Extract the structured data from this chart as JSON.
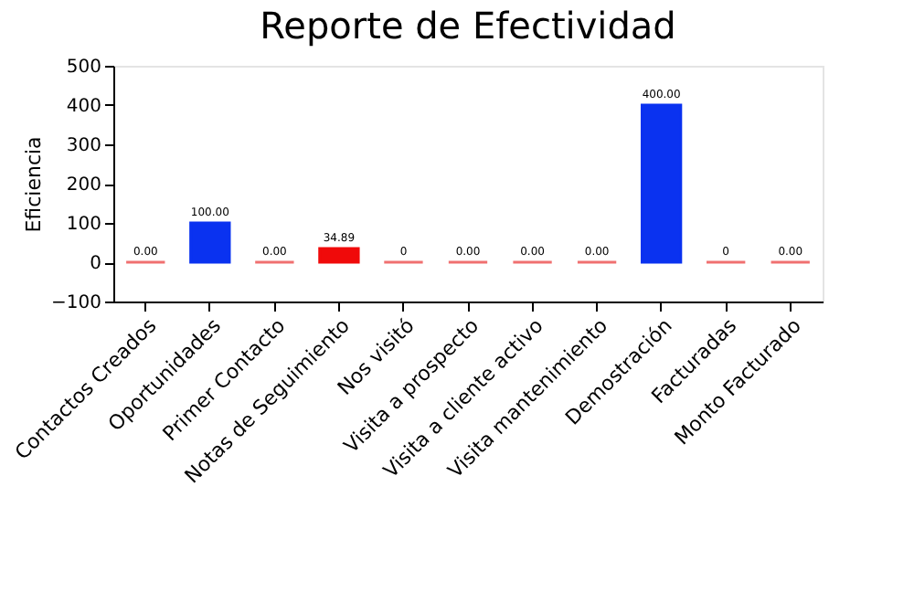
{
  "chart_data": {
    "type": "bar",
    "title": "Reporte de Efectividad",
    "ylabel": "Eficiencia",
    "categories": [
      "Contactos Creados",
      "Oportunidades",
      "Primer Contacto",
      "Notas de Seguimiento",
      "Nos visitó",
      "Visita a prospecto",
      "Visita a cliente activo",
      "Visita mantenimiento",
      "Demostración",
      "Facturadas",
      "Monto Facturado"
    ],
    "values": [
      0,
      100,
      0,
      34.89,
      0,
      0,
      0,
      0,
      400,
      0,
      0
    ],
    "colors": [
      "#f07070",
      "#0a32f0",
      "#f07070",
      "#f00a0a",
      "#f07070",
      "#f07070",
      "#f07070",
      "#f07070",
      "#0a32f0",
      "#f07070",
      "#f07070"
    ],
    "value_labels": [
      "0.00",
      "100.00",
      "0.00",
      "34.89",
      "0",
      "0.00",
      "0.00",
      "0.00",
      "400.00",
      "0",
      "0.00"
    ],
    "ylim": [
      -100,
      500
    ],
    "yticks": [
      -100,
      0,
      100,
      200,
      300,
      400,
      500
    ],
    "grid": false
  }
}
